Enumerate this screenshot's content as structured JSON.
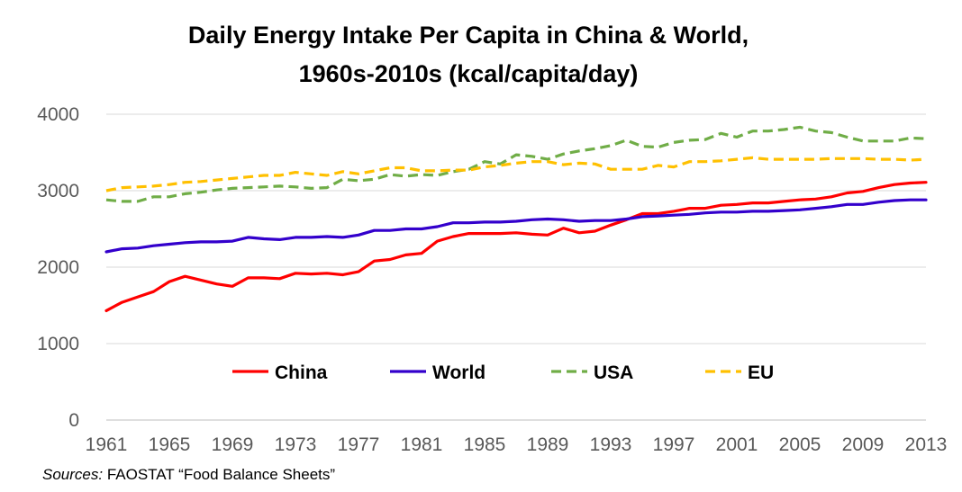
{
  "chart_data": {
    "type": "line",
    "title_lines": [
      "Daily Energy Intake Per Capita in China & World,",
      "1960s-2010s (kcal/capita/day)"
    ],
    "xlabel": "",
    "ylabel": "",
    "xlim": [
      1961,
      2013
    ],
    "ylim": [
      0,
      4000
    ],
    "y_ticks": [
      0,
      1000,
      2000,
      3000,
      4000
    ],
    "x_ticks": [
      1961,
      1965,
      1969,
      1973,
      1977,
      1981,
      1985,
      1989,
      1993,
      1997,
      2001,
      2005,
      2009,
      2013
    ],
    "grid": "horizontal",
    "legend": "inside-lower-center",
    "series": [
      {
        "name": "China",
        "color": "#ff0000",
        "dash": "solid",
        "values": [
          1430,
          1540,
          1610,
          1680,
          1810,
          1880,
          1830,
          1780,
          1750,
          1860,
          1860,
          1850,
          1920,
          1910,
          1920,
          1900,
          1940,
          2080,
          2100,
          2160,
          2180,
          2340,
          2400,
          2440,
          2440,
          2440,
          2450,
          2430,
          2420,
          2510,
          2450,
          2470,
          2550,
          2620,
          2700,
          2700,
          2730,
          2770,
          2770,
          2810,
          2820,
          2840,
          2840,
          2860,
          2880,
          2890,
          2920,
          2970,
          2990,
          3040,
          3080,
          3100,
          3110
        ]
      },
      {
        "name": "World",
        "color": "#3300cc",
        "dash": "solid",
        "values": [
          2200,
          2240,
          2250,
          2280,
          2300,
          2320,
          2330,
          2330,
          2340,
          2390,
          2370,
          2360,
          2390,
          2390,
          2400,
          2390,
          2420,
          2480,
          2480,
          2500,
          2500,
          2530,
          2580,
          2580,
          2590,
          2590,
          2600,
          2620,
          2630,
          2620,
          2600,
          2610,
          2610,
          2630,
          2660,
          2670,
          2680,
          2690,
          2710,
          2720,
          2720,
          2730,
          2730,
          2740,
          2750,
          2770,
          2790,
          2820,
          2820,
          2850,
          2870,
          2880,
          2880
        ]
      },
      {
        "name": "USA",
        "color": "#70ad47",
        "dash": "dashed",
        "values": [
          2880,
          2860,
          2860,
          2920,
          2920,
          2960,
          2980,
          3010,
          3030,
          3040,
          3050,
          3060,
          3050,
          3030,
          3040,
          3150,
          3130,
          3150,
          3210,
          3190,
          3210,
          3200,
          3250,
          3280,
          3380,
          3350,
          3470,
          3450,
          3410,
          3480,
          3520,
          3550,
          3590,
          3660,
          3580,
          3570,
          3630,
          3660,
          3670,
          3750,
          3700,
          3780,
          3780,
          3800,
          3830,
          3780,
          3760,
          3700,
          3650,
          3650,
          3650,
          3690,
          3680
        ]
      },
      {
        "name": "EU",
        "color": "#ffc000",
        "dash": "dashed",
        "values": [
          3000,
          3040,
          3050,
          3060,
          3080,
          3110,
          3120,
          3140,
          3160,
          3180,
          3200,
          3200,
          3240,
          3220,
          3200,
          3250,
          3220,
          3260,
          3300,
          3300,
          3260,
          3260,
          3270,
          3270,
          3310,
          3330,
          3360,
          3380,
          3380,
          3340,
          3360,
          3350,
          3280,
          3280,
          3280,
          3330,
          3310,
          3380,
          3380,
          3390,
          3410,
          3430,
          3410,
          3410,
          3410,
          3410,
          3420,
          3420,
          3420,
          3410,
          3410,
          3400,
          3410
        ]
      }
    ]
  },
  "source": {
    "label": "Sources:",
    "text": " FAOSTAT “Food Balance Sheets”"
  }
}
